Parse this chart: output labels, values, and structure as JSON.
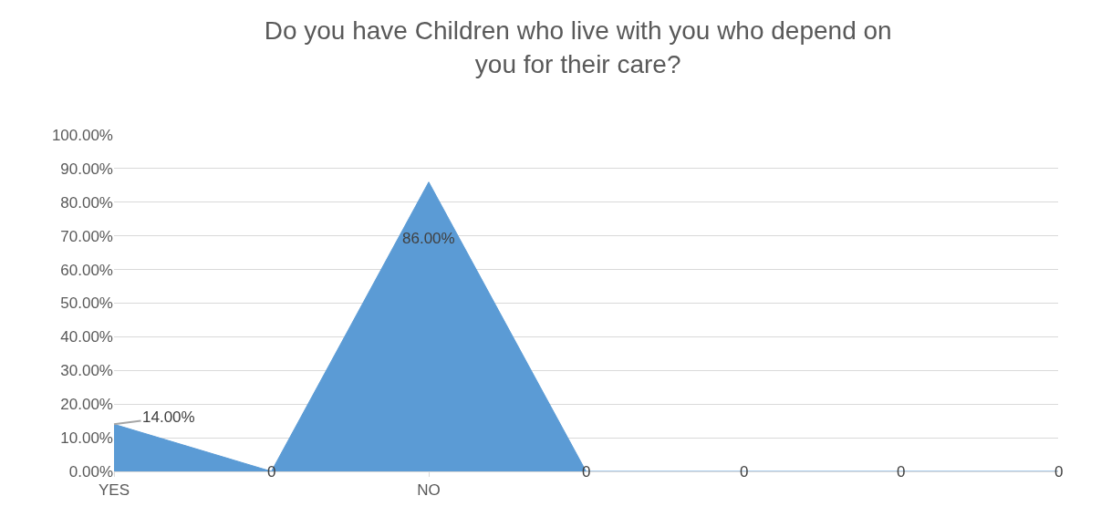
{
  "chart_data": {
    "type": "area",
    "title": "Do you have Children who live with you who depend on you for their care?",
    "categories": [
      "YES",
      null,
      "NO",
      null,
      null,
      null,
      null
    ],
    "series": [
      {
        "color": "#5b9bd5",
        "values": [
          14,
          0,
          86,
          0,
          0,
          0,
          0
        ],
        "value_labels": [
          "14.00%",
          "0",
          "86.00%",
          "0",
          "0",
          "0",
          "0"
        ]
      }
    ],
    "ylim": [
      0,
      100
    ],
    "yticks": [
      {
        "value": 0,
        "label": "0.00%"
      },
      {
        "value": 10,
        "label": "10.00%"
      },
      {
        "value": 20,
        "label": "20.00%"
      },
      {
        "value": 30,
        "label": "30.00%"
      },
      {
        "value": 40,
        "label": "40.00%"
      },
      {
        "value": 50,
        "label": "50.00%"
      },
      {
        "value": 60,
        "label": "60.00%"
      },
      {
        "value": 70,
        "label": "70.00%"
      },
      {
        "value": 80,
        "label": "80.00%"
      },
      {
        "value": 90,
        "label": "90.00%"
      },
      {
        "value": 100,
        "label": "100.00%"
      }
    ],
    "grid": "y"
  }
}
